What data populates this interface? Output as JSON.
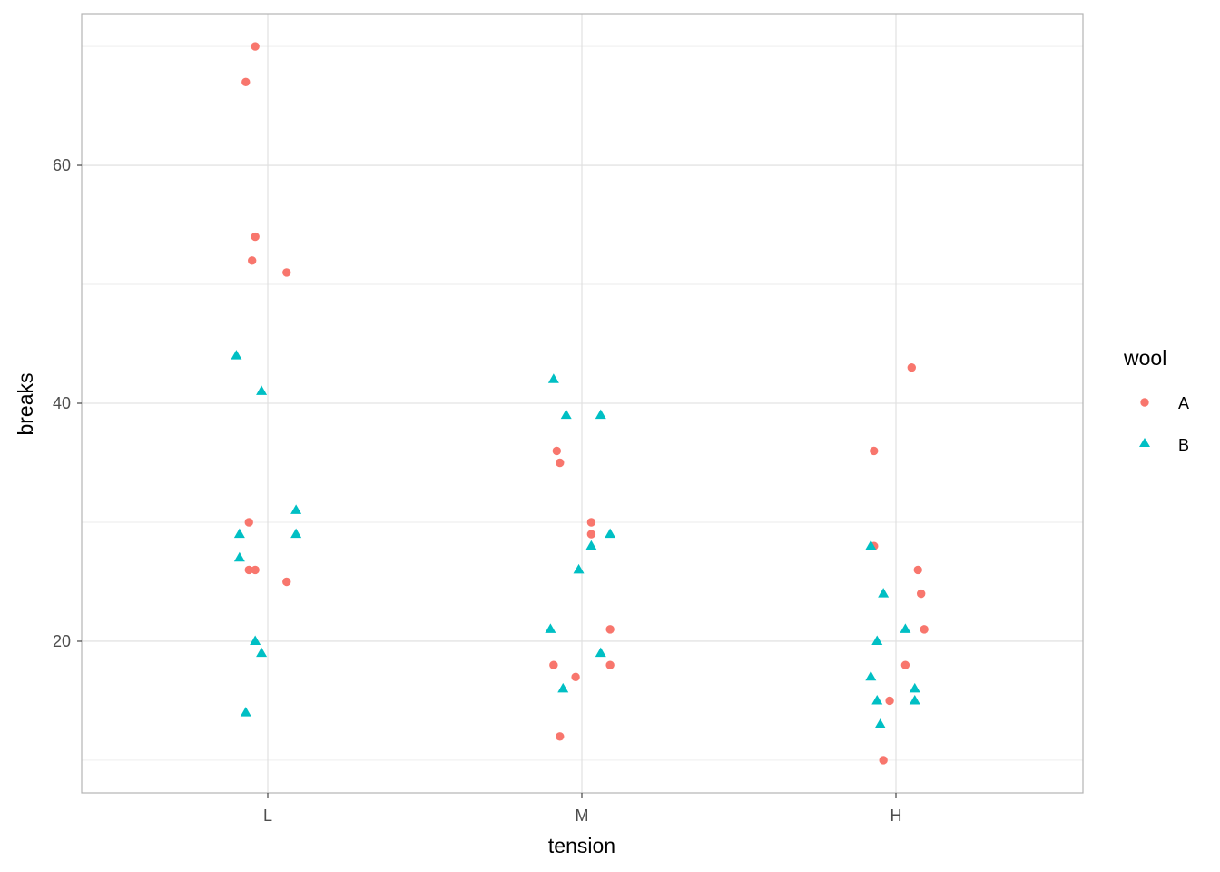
{
  "chart_data": {
    "type": "scatter",
    "title": "",
    "xlabel": "tension",
    "ylabel": "breaks",
    "categories": [
      "L",
      "M",
      "H"
    ],
    "ylim": [
      7.25,
      72.75
    ],
    "yticks": [
      20,
      40,
      60
    ],
    "grid": true,
    "legend": {
      "title": "wool",
      "position": "right",
      "entries": [
        "A",
        "B"
      ]
    },
    "colors": {
      "A": "#F8766D",
      "B": "#00BFC4",
      "grid": "#dedede",
      "border": "#b3b3b3"
    },
    "series": [
      {
        "name": "A",
        "shape": "circle",
        "points": [
          {
            "category": "L",
            "jitter": -0.04,
            "y": 26
          },
          {
            "category": "L",
            "jitter": -0.06,
            "y": 30
          },
          {
            "category": "L",
            "jitter": -0.04,
            "y": 54
          },
          {
            "category": "L",
            "jitter": 0.06,
            "y": 25
          },
          {
            "category": "L",
            "jitter": -0.04,
            "y": 70
          },
          {
            "category": "L",
            "jitter": -0.05,
            "y": 52
          },
          {
            "category": "L",
            "jitter": 0.06,
            "y": 51
          },
          {
            "category": "L",
            "jitter": -0.06,
            "y": 26
          },
          {
            "category": "L",
            "jitter": -0.07,
            "y": 67
          },
          {
            "category": "M",
            "jitter": -0.09,
            "y": 18
          },
          {
            "category": "M",
            "jitter": 0.09,
            "y": 21
          },
          {
            "category": "M",
            "jitter": 0.03,
            "y": 29
          },
          {
            "category": "M",
            "jitter": -0.02,
            "y": 17
          },
          {
            "category": "M",
            "jitter": -0.07,
            "y": 12
          },
          {
            "category": "M",
            "jitter": 0.09,
            "y": 18
          },
          {
            "category": "M",
            "jitter": -0.07,
            "y": 35
          },
          {
            "category": "M",
            "jitter": 0.03,
            "y": 30
          },
          {
            "category": "M",
            "jitter": -0.08,
            "y": 36
          },
          {
            "category": "H",
            "jitter": -0.07,
            "y": 36
          },
          {
            "category": "H",
            "jitter": 0.09,
            "y": 21
          },
          {
            "category": "H",
            "jitter": 0.08,
            "y": 24
          },
          {
            "category": "H",
            "jitter": 0.03,
            "y": 18
          },
          {
            "category": "H",
            "jitter": -0.04,
            "y": 10
          },
          {
            "category": "H",
            "jitter": 0.05,
            "y": 43
          },
          {
            "category": "H",
            "jitter": -0.07,
            "y": 28
          },
          {
            "category": "H",
            "jitter": -0.02,
            "y": 15
          },
          {
            "category": "H",
            "jitter": 0.07,
            "y": 26
          }
        ]
      },
      {
        "name": "B",
        "shape": "triangle",
        "points": [
          {
            "category": "L",
            "jitter": -0.09,
            "y": 27
          },
          {
            "category": "L",
            "jitter": -0.07,
            "y": 14
          },
          {
            "category": "L",
            "jitter": -0.09,
            "y": 29
          },
          {
            "category": "L",
            "jitter": -0.02,
            "y": 19
          },
          {
            "category": "L",
            "jitter": 0.09,
            "y": 29
          },
          {
            "category": "L",
            "jitter": 0.09,
            "y": 31
          },
          {
            "category": "L",
            "jitter": -0.02,
            "y": 41
          },
          {
            "category": "L",
            "jitter": -0.04,
            "y": 20
          },
          {
            "category": "L",
            "jitter": -0.1,
            "y": 44
          },
          {
            "category": "M",
            "jitter": -0.09,
            "y": 42
          },
          {
            "category": "M",
            "jitter": -0.01,
            "y": 26
          },
          {
            "category": "M",
            "jitter": 0.06,
            "y": 19
          },
          {
            "category": "M",
            "jitter": -0.06,
            "y": 16
          },
          {
            "category": "M",
            "jitter": 0.06,
            "y": 39
          },
          {
            "category": "M",
            "jitter": 0.03,
            "y": 28
          },
          {
            "category": "M",
            "jitter": -0.1,
            "y": 21
          },
          {
            "category": "M",
            "jitter": -0.05,
            "y": 39
          },
          {
            "category": "M",
            "jitter": 0.09,
            "y": 29
          },
          {
            "category": "H",
            "jitter": -0.06,
            "y": 20
          },
          {
            "category": "H",
            "jitter": 0.03,
            "y": 21
          },
          {
            "category": "H",
            "jitter": -0.04,
            "y": 24
          },
          {
            "category": "H",
            "jitter": -0.08,
            "y": 17
          },
          {
            "category": "H",
            "jitter": -0.05,
            "y": 13
          },
          {
            "category": "H",
            "jitter": 0.06,
            "y": 15
          },
          {
            "category": "H",
            "jitter": -0.06,
            "y": 15
          },
          {
            "category": "H",
            "jitter": 0.06,
            "y": 16
          },
          {
            "category": "H",
            "jitter": -0.08,
            "y": 28
          }
        ]
      }
    ]
  }
}
